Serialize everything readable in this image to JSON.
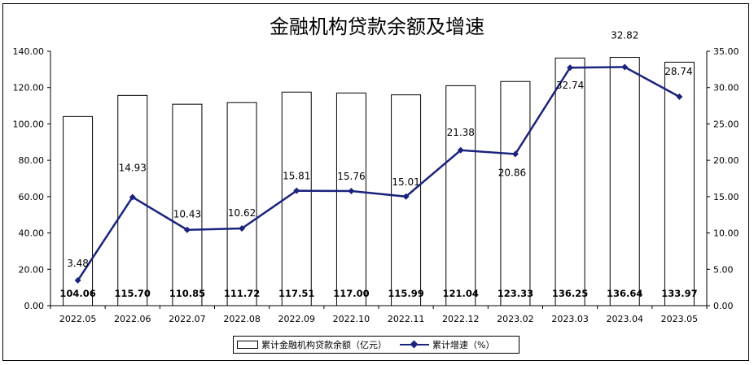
{
  "chart_data": {
    "type": "bar",
    "title": "金融机构贷款余额及增速",
    "categories": [
      "2022.05",
      "2022.06",
      "2022.07",
      "2022.08",
      "2022.09",
      "2022.10",
      "2022.11",
      "2022.12",
      "2023.02",
      "2023.03",
      "2023.04",
      "2023.05"
    ],
    "bar_labels": [
      "104.06",
      "115.70",
      "110.85",
      "111.72",
      "117.51",
      "117.00",
      "115.99",
      "121.04",
      "123.33",
      "136.25",
      "136.64",
      "133.97"
    ],
    "line_labels": [
      "3.48",
      "14.93",
      "10.43",
      "10.62",
      "15.81",
      "15.76",
      "15.01",
      "21.38",
      "20.86",
      "32.74",
      "32.82",
      "28.74"
    ],
    "series": [
      {
        "name": "累计金融机构贷款余额（亿元）",
        "type": "bar",
        "axis": "left",
        "values": [
          104.06,
          115.7,
          110.85,
          111.72,
          117.51,
          117.0,
          115.99,
          121.04,
          123.33,
          136.25,
          136.64,
          133.97
        ]
      },
      {
        "name": "累计增速（%）",
        "type": "line",
        "axis": "right",
        "values": [
          3.48,
          14.93,
          10.43,
          10.62,
          15.81,
          15.76,
          15.01,
          21.38,
          20.86,
          32.74,
          32.82,
          28.74
        ]
      }
    ],
    "y_left": {
      "min": 0,
      "max": 140,
      "step": 20,
      "tick_labels": [
        "0.00",
        "20.00",
        "40.00",
        "60.00",
        "80.00",
        "100.00",
        "120.00",
        "140.00"
      ]
    },
    "y_right": {
      "min": 0,
      "max": 35,
      "step": 5,
      "tick_labels": [
        "0.00",
        "5.00",
        "10.00",
        "15.00",
        "20.00",
        "25.00",
        "30.00",
        "35.00"
      ]
    },
    "grid": false,
    "legend_position": "bottom",
    "colors": {
      "bar_fill": "#ffffff",
      "bar_stroke": "#000000",
      "line": "#1a237e"
    }
  },
  "legend": {
    "bar": "累计金融机构贷款余额（亿元）",
    "line": "累计增速（%）"
  }
}
